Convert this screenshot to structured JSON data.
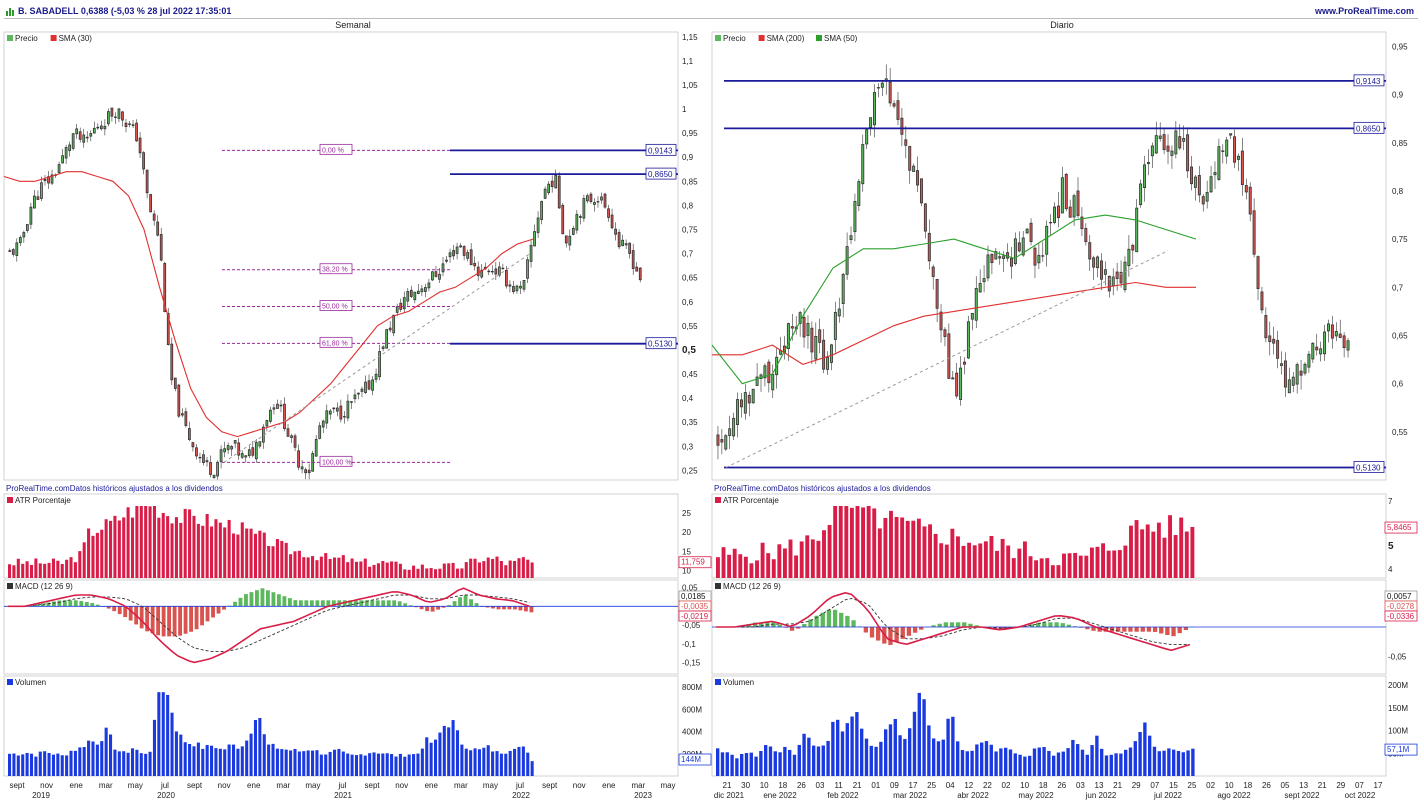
{
  "header": {
    "title": "B. SABADELL 0,6388 (-5,03 % 28 jul 2022 17:35:01",
    "site": "www.ProRealTime.com"
  },
  "colors": {
    "up": "#5cb85c",
    "down": "#d9534f",
    "sma_red": "#e03030",
    "sma_green": "#2ca02c",
    "level": "#1a1a9a",
    "fib": "#9a2a9a",
    "atr": "#d81e48",
    "volume": "#1a3adf",
    "macd": "#d81e48"
  },
  "chart_data": [
    {
      "panel": "weekly-price",
      "type": "candlestick",
      "title": "Semanal",
      "legend": [
        "Precio",
        "SMA (30)"
      ],
      "yticks": [
        "1,15",
        "1,1",
        "1,05",
        "1",
        "0,95",
        "0,9",
        "0,85",
        "0,8",
        "0,75",
        "0,7",
        "0,65",
        "0,6",
        "0,55",
        "0,5",
        "0,45",
        "0,4",
        "0,35",
        "0,3",
        "0,25"
      ],
      "ylim": [
        0.23,
        1.16
      ],
      "xlim": [
        0,
        220
      ],
      "closes": [
        0.7,
        0.72,
        0.8,
        0.84,
        0.86,
        0.9,
        0.95,
        0.93,
        0.96,
        0.98,
        1.0,
        0.97,
        0.94,
        0.8,
        0.73,
        0.45,
        0.36,
        0.31,
        0.27,
        0.25,
        0.29,
        0.3,
        0.27,
        0.3,
        0.36,
        0.4,
        0.33,
        0.27,
        0.25,
        0.34,
        0.37,
        0.37,
        0.39,
        0.41,
        0.44,
        0.52,
        0.57,
        0.61,
        0.62,
        0.64,
        0.66,
        0.69,
        0.72,
        0.69,
        0.66,
        0.67,
        0.66,
        0.63,
        0.62,
        0.74,
        0.83,
        0.86,
        0.72,
        0.78,
        0.81,
        0.82,
        0.79,
        0.72,
        0.7,
        0.65
      ],
      "sma": [
        0.86,
        0.85,
        0.85,
        0.86,
        0.87,
        0.87,
        0.86,
        0.85,
        0.82,
        0.75,
        0.63,
        0.52,
        0.42,
        0.36,
        0.33,
        0.32,
        0.33,
        0.34,
        0.35,
        0.37,
        0.4,
        0.43,
        0.47,
        0.51,
        0.55,
        0.57,
        0.58,
        0.6,
        0.62,
        0.63,
        0.65,
        0.67,
        0.7,
        0.72,
        0.73
      ],
      "fib_levels": [
        {
          "label": "0,00 %",
          "value": 0.9143
        },
        {
          "label": "38,20 %",
          "value": 0.6665
        },
        {
          "label": "50,00 %",
          "value": 0.5901
        },
        {
          "label": "61,80 %",
          "value": 0.5137
        },
        {
          "label": "100,00 %",
          "value": 0.2667
        }
      ],
      "levels": [
        {
          "label": "0,9143",
          "value": 0.9143
        },
        {
          "label": "0,8650",
          "value": 0.865
        },
        {
          "label": "0,5130",
          "value": 0.513
        }
      ],
      "trend_line": [
        [
          0.2667,
          47
        ],
        [
          0.7,
          132
        ]
      ],
      "note": "ProRealTime.comDatos históricos ajustados a los dividendos",
      "highlight_tick": "0,5"
    },
    {
      "panel": "daily-price",
      "type": "candlestick",
      "title": "Diario",
      "legend": [
        "Precio",
        "SMA (200)",
        "SMA (50)"
      ],
      "yticks": [
        "0,95",
        "0,9",
        "0,85",
        "0,8",
        "0,75",
        "0,7",
        "0,65",
        "0,6",
        "0,55"
      ],
      "ylim": [
        0.5,
        0.965
      ],
      "xlim": [
        0,
        230
      ],
      "closes": [
        0.54,
        0.56,
        0.58,
        0.6,
        0.61,
        0.63,
        0.65,
        0.66,
        0.64,
        0.62,
        0.67,
        0.75,
        0.83,
        0.89,
        0.91,
        0.87,
        0.84,
        0.8,
        0.72,
        0.64,
        0.58,
        0.65,
        0.7,
        0.73,
        0.72,
        0.74,
        0.75,
        0.73,
        0.76,
        0.8,
        0.78,
        0.75,
        0.72,
        0.71,
        0.7,
        0.75,
        0.83,
        0.86,
        0.84,
        0.86,
        0.81,
        0.79,
        0.84,
        0.86,
        0.82,
        0.75,
        0.66,
        0.62,
        0.6,
        0.61,
        0.63,
        0.65,
        0.66,
        0.64
      ],
      "sma200": [
        0.63,
        0.63,
        0.64,
        0.62,
        0.63,
        0.645,
        0.66,
        0.67,
        0.675,
        0.68,
        0.685,
        0.69,
        0.695,
        0.7,
        0.705,
        0.7,
        0.7
      ],
      "sma50": [
        0.64,
        0.6,
        0.61,
        0.67,
        0.72,
        0.74,
        0.74,
        0.745,
        0.75,
        0.74,
        0.73,
        0.75,
        0.77,
        0.775,
        0.77,
        0.76,
        0.75
      ],
      "levels": [
        {
          "label": "0,9143",
          "value": 0.9143
        },
        {
          "label": "0,8650",
          "value": 0.865
        },
        {
          "label": "0,5130",
          "value": 0.513
        }
      ],
      "note": "ProRealTime.comDatos históricos ajustados a los dividendos",
      "highlight_tick": "0,5"
    },
    {
      "panel": "weekly-atr",
      "type": "bar",
      "legend": [
        "ATR Porcentaje"
      ],
      "yticks": [
        "25",
        "20",
        "15",
        "10"
      ],
      "ylim": [
        8,
        30
      ],
      "last_value": "11,759",
      "values": [
        12,
        12,
        12,
        12,
        12,
        12,
        12,
        13,
        14,
        20,
        21,
        22,
        23,
        25,
        26,
        28,
        28,
        26,
        25,
        24,
        24,
        24,
        23,
        23,
        22,
        22,
        21,
        20,
        19,
        18,
        17,
        16,
        15,
        15,
        14,
        14,
        13,
        13,
        13,
        12,
        12,
        12,
        12,
        12,
        11,
        11,
        11,
        11,
        11,
        11,
        11,
        11,
        12,
        13,
        13,
        13,
        12,
        12,
        13,
        12
      ]
    },
    {
      "panel": "daily-atr",
      "type": "bar",
      "legend": [
        "ATR Porcentaje"
      ],
      "yticks": [
        "7",
        "5",
        "4"
      ],
      "ylim": [
        3.6,
        7.3
      ],
      "last_value": "5,8465",
      "highlight_tick": "5",
      "values": [
        4.6,
        4.6,
        4.6,
        4.7,
        4.7,
        4.8,
        4.9,
        5.0,
        5.2,
        5.6,
        6.4,
        7.0,
        6.7,
        6.5,
        6.3,
        6.1,
        6.0,
        5.8,
        5.7,
        5.6,
        5.5,
        5.4,
        5.3,
        5.2,
        5.1,
        5.0,
        4.9,
        4.8,
        4.7,
        4.6,
        4.5,
        4.5,
        4.4,
        4.7,
        4.8,
        5.0,
        5.4,
        5.8,
        5.9,
        5.9,
        5.8,
        5.9,
        5.8
      ]
    },
    {
      "panel": "weekly-macd",
      "type": "line",
      "legend": [
        "MACD (12 26 9)"
      ],
      "yticks": [
        "0,05",
        "-0,05",
        "-0,1",
        "-0,15"
      ],
      "ylim": [
        -0.18,
        0.07
      ],
      "values": [
        "0,0185",
        "-0,0035",
        "-0,0219"
      ],
      "macd": [
        0.0,
        0.0,
        0.01,
        0.02,
        0.03,
        0.03,
        0.02,
        0.0,
        -0.04,
        -0.09,
        -0.13,
        -0.15,
        -0.14,
        -0.12,
        -0.09,
        -0.06,
        -0.05,
        -0.04,
        -0.02,
        0.0,
        0.01,
        0.02,
        0.03,
        0.04,
        0.03,
        0.01,
        0.02,
        0.05,
        0.03,
        0.02,
        0.015,
        0.0
      ],
      "signal": [
        0.0,
        0.0,
        0.005,
        0.01,
        0.02,
        0.025,
        0.025,
        0.02,
        0.0,
        -0.04,
        -0.08,
        -0.11,
        -0.12,
        -0.12,
        -0.11,
        -0.09,
        -0.07,
        -0.05,
        -0.03,
        -0.01,
        0.0,
        0.01,
        0.02,
        0.03,
        0.03,
        0.02,
        0.02,
        0.03,
        0.03,
        0.025,
        0.02,
        0.01
      ]
    },
    {
      "panel": "daily-macd",
      "type": "line",
      "legend": [
        "MACD (12 26 9)"
      ],
      "yticks": [
        "0,05",
        "-0,05"
      ],
      "ylim": [
        -0.08,
        0.08
      ],
      "values": [
        "0,0057",
        "-0,0278",
        "-0,0336"
      ],
      "macd": [
        0.0,
        0.0,
        0.005,
        0.01,
        0.0,
        0.02,
        0.05,
        0.06,
        0.03,
        -0.02,
        -0.03,
        -0.02,
        -0.01,
        0.0,
        0.0,
        -0.005,
        0.0,
        0.01,
        0.02,
        0.015,
        0.0,
        -0.01,
        -0.02,
        -0.03,
        -0.04,
        -0.03
      ],
      "signal": [
        0.0,
        0.0,
        0.0,
        0.005,
        0.005,
        0.01,
        0.03,
        0.05,
        0.04,
        0.0,
        -0.02,
        -0.02,
        -0.015,
        -0.005,
        0.0,
        -0.002,
        0.0,
        0.005,
        0.015,
        0.015,
        0.005,
        -0.005,
        -0.015,
        -0.025,
        -0.03,
        -0.03
      ]
    },
    {
      "panel": "weekly-volume",
      "type": "bar",
      "legend": [
        "Volumen"
      ],
      "yticks": [
        "800M",
        "600M",
        "400M",
        "200M"
      ],
      "ylim": [
        0,
        900
      ],
      "last_value": "144M",
      "values": [
        200,
        200,
        210,
        190,
        220,
        200,
        180,
        230,
        250,
        320,
        300,
        410,
        240,
        200,
        260,
        190,
        240,
        850,
        700,
        380,
        300,
        290,
        250,
        280,
        230,
        280,
        260,
        340,
        620,
        280,
        260,
        240,
        230,
        220,
        250,
        210,
        200,
        230,
        190,
        180,
        200,
        220,
        210,
        190,
        180,
        200,
        190,
        320,
        290,
        450,
        490,
        300,
        250,
        230,
        260,
        210,
        220,
        270,
        250,
        144
      ]
    },
    {
      "panel": "daily-volume",
      "type": "bar",
      "legend": [
        "Volumen"
      ],
      "yticks": [
        "200M",
        "150M",
        "100M",
        "50M"
      ],
      "ylim": [
        0,
        220
      ],
      "last_value": "57,1M",
      "values": [
        60,
        50,
        40,
        55,
        45,
        70,
        50,
        60,
        45,
        90,
        70,
        60,
        120,
        100,
        150,
        90,
        60,
        85,
        130,
        80,
        110,
        210,
        90,
        70,
        140,
        60,
        50,
        80,
        70,
        55,
        60,
        50,
        45,
        70,
        55,
        45,
        60,
        80,
        45,
        90,
        50,
        45,
        60,
        70,
        120,
        65,
        55,
        60,
        50,
        57
      ]
    }
  ],
  "x_axes": {
    "weekly": {
      "months": [
        "sept",
        "nov",
        "ene",
        "mar",
        "may",
        "jul",
        "sept",
        "nov",
        "ene",
        "mar",
        "may",
        "jul",
        "sept",
        "nov",
        "ene",
        "mar",
        "may",
        "jul",
        "sept",
        "nov",
        "ene",
        "mar",
        "may"
      ],
      "years": [
        "2019",
        "2020",
        "2021",
        "2022",
        "2023"
      ]
    },
    "daily": {
      "days": [
        "21",
        "30",
        "10",
        "18",
        "26",
        "03",
        "11",
        "21",
        "01",
        "09",
        "17",
        "25",
        "04",
        "12",
        "22",
        "02",
        "10",
        "18",
        "26",
        "03",
        "13",
        "21",
        "29",
        "07",
        "15",
        "25",
        "02",
        "10",
        "18",
        "26",
        "05",
        "13",
        "21",
        "29",
        "07",
        "17"
      ],
      "months": [
        "dic 2021",
        "ene 2022",
        "feb 2022",
        "mar 2022",
        "abr 2022",
        "may 2022",
        "jun 2022",
        "jul 2022",
        "ago 2022",
        "sept 2022",
        "oct 2022"
      ]
    }
  }
}
